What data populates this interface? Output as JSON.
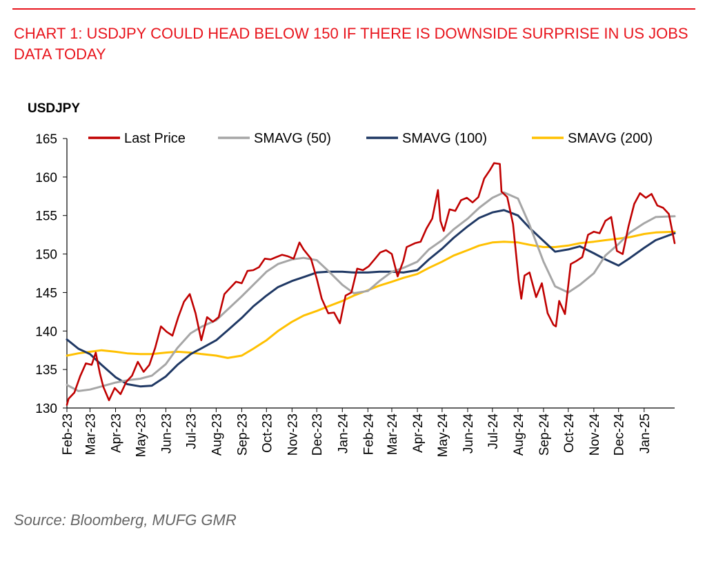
{
  "header": {
    "title": "CHART 1: USDJPY COULD HEAD BELOW 150 IF THERE IS DOWNSIDE SURPRISE IN US JOBS DATA TODAY"
  },
  "source": "Source: Bloomberg, MUFG GMR",
  "chart_data": {
    "type": "line",
    "ylabel": "USDJPY",
    "ylim": [
      130,
      165
    ],
    "yticks": [
      130,
      135,
      140,
      145,
      150,
      155,
      160,
      165
    ],
    "xlim": [
      "2023-02-01",
      "2025-02-07"
    ],
    "xticks": [
      "2023-02-01",
      "2023-03-01",
      "2023-04-01",
      "2023-05-01",
      "2023-06-01",
      "2023-07-01",
      "2023-08-01",
      "2023-09-01",
      "2023-10-01",
      "2023-11-01",
      "2023-12-01",
      "2024-01-01",
      "2024-02-01",
      "2024-03-01",
      "2024-04-01",
      "2024-05-01",
      "2024-06-01",
      "2024-07-01",
      "2024-08-01",
      "2024-09-01",
      "2024-10-01",
      "2024-11-01",
      "2024-12-01",
      "2025-01-01"
    ],
    "xtick_labels": [
      "Feb-23",
      "Mar-23",
      "Apr-23",
      "May-23",
      "Jun-23",
      "Jul-23",
      "Aug-23",
      "Sep-23",
      "Oct-23",
      "Nov-23",
      "Dec-23",
      "Jan-24",
      "Feb-24",
      "Mar-24",
      "Apr-24",
      "May-24",
      "Jun-24",
      "Jul-24",
      "Aug-24",
      "Sep-24",
      "Oct-24",
      "Nov-24",
      "Dec-24",
      "Jan-25"
    ],
    "grid": false,
    "legend_position": "top",
    "series": [
      {
        "name": "Last Price",
        "color": "#c00000",
        "x": [
          "2023-02-01",
          "2023-02-03",
          "2023-02-10",
          "2023-02-17",
          "2023-02-24",
          "2023-03-03",
          "2023-03-08",
          "2023-03-13",
          "2023-03-17",
          "2023-03-24",
          "2023-03-31",
          "2023-04-07",
          "2023-04-14",
          "2023-04-21",
          "2023-04-28",
          "2023-05-05",
          "2023-05-12",
          "2023-05-19",
          "2023-05-26",
          "2023-06-02",
          "2023-06-09",
          "2023-06-16",
          "2023-06-23",
          "2023-06-30",
          "2023-07-07",
          "2023-07-14",
          "2023-07-21",
          "2023-07-28",
          "2023-08-04",
          "2023-08-11",
          "2023-08-18",
          "2023-08-25",
          "2023-09-01",
          "2023-09-08",
          "2023-09-15",
          "2023-09-22",
          "2023-09-29",
          "2023-10-06",
          "2023-10-13",
          "2023-10-20",
          "2023-10-27",
          "2023-11-03",
          "2023-11-10",
          "2023-11-15",
          "2023-11-24",
          "2023-12-01",
          "2023-12-07",
          "2023-12-15",
          "2023-12-22",
          "2023-12-29",
          "2024-01-05",
          "2024-01-12",
          "2024-01-19",
          "2024-01-26",
          "2024-02-02",
          "2024-02-09",
          "2024-02-16",
          "2024-02-23",
          "2024-03-01",
          "2024-03-08",
          "2024-03-15",
          "2024-03-19",
          "2024-03-29",
          "2024-04-05",
          "2024-04-12",
          "2024-04-19",
          "2024-04-26",
          "2024-04-29",
          "2024-05-03",
          "2024-05-10",
          "2024-05-17",
          "2024-05-24",
          "2024-05-31",
          "2024-06-07",
          "2024-06-14",
          "2024-06-21",
          "2024-06-28",
          "2024-07-03",
          "2024-07-10",
          "2024-07-12",
          "2024-07-19",
          "2024-07-26",
          "2024-08-02",
          "2024-08-05",
          "2024-08-09",
          "2024-08-15",
          "2024-08-23",
          "2024-08-30",
          "2024-09-06",
          "2024-09-13",
          "2024-09-16",
          "2024-09-20",
          "2024-09-27",
          "2024-10-04",
          "2024-10-11",
          "2024-10-18",
          "2024-10-25",
          "2024-11-01",
          "2024-11-08",
          "2024-11-15",
          "2024-11-22",
          "2024-11-29",
          "2024-12-06",
          "2024-12-13",
          "2024-12-20",
          "2024-12-27",
          "2025-01-03",
          "2025-01-10",
          "2025-01-17",
          "2025-01-24",
          "2025-01-31",
          "2025-02-07"
        ],
        "values": [
          130.4,
          131.2,
          132.0,
          134.1,
          135.8,
          135.6,
          137.2,
          134.5,
          132.8,
          131.0,
          132.6,
          131.8,
          133.4,
          134.2,
          136.0,
          134.7,
          135.6,
          137.8,
          140.6,
          139.9,
          139.4,
          141.8,
          143.8,
          144.8,
          142.3,
          138.8,
          141.8,
          141.2,
          141.8,
          144.8,
          145.6,
          146.4,
          146.2,
          147.8,
          147.9,
          148.3,
          149.4,
          149.3,
          149.6,
          149.9,
          149.7,
          149.4,
          151.5,
          150.6,
          149.4,
          146.8,
          144.2,
          142.3,
          142.4,
          141.0,
          144.6,
          145.0,
          148.1,
          147.9,
          148.4,
          149.3,
          150.2,
          150.5,
          150.0,
          147.1,
          149.1,
          150.9,
          151.4,
          151.6,
          153.3,
          154.6,
          158.3,
          154.3,
          153.0,
          155.8,
          155.6,
          157.0,
          157.3,
          156.7,
          157.4,
          159.8,
          160.9,
          161.8,
          161.7,
          158.1,
          157.4,
          153.9,
          146.5,
          144.2,
          147.2,
          147.6,
          144.4,
          146.2,
          142.3,
          140.8,
          140.6,
          143.9,
          142.2,
          148.7,
          149.1,
          149.6,
          152.5,
          152.9,
          152.7,
          154.3,
          154.8,
          150.4,
          150.0,
          153.6,
          156.5,
          157.9,
          157.3,
          157.8,
          156.3,
          156.0,
          155.2,
          151.4
        ]
      },
      {
        "name": "SMAVG (50)",
        "color": "#a6a6a6",
        "x": [
          "2023-02-01",
          "2023-02-15",
          "2023-03-01",
          "2023-03-15",
          "2023-04-01",
          "2023-04-15",
          "2023-05-01",
          "2023-05-15",
          "2023-06-01",
          "2023-06-15",
          "2023-07-01",
          "2023-07-15",
          "2023-08-01",
          "2023-08-15",
          "2023-09-01",
          "2023-09-15",
          "2023-10-01",
          "2023-10-15",
          "2023-11-01",
          "2023-11-15",
          "2023-12-01",
          "2023-12-15",
          "2024-01-01",
          "2024-01-15",
          "2024-02-01",
          "2024-02-15",
          "2024-03-01",
          "2024-03-15",
          "2024-04-01",
          "2024-04-15",
          "2024-05-01",
          "2024-05-15",
          "2024-06-01",
          "2024-06-15",
          "2024-07-01",
          "2024-07-15",
          "2024-08-01",
          "2024-08-15",
          "2024-09-01",
          "2024-09-15",
          "2024-10-01",
          "2024-10-15",
          "2024-11-01",
          "2024-11-15",
          "2024-12-01",
          "2024-12-15",
          "2025-01-01",
          "2025-01-15",
          "2025-02-07"
        ],
        "values": [
          133.0,
          132.2,
          132.4,
          132.8,
          133.3,
          133.6,
          133.8,
          134.2,
          135.7,
          137.8,
          139.7,
          140.6,
          141.4,
          142.8,
          144.5,
          146.0,
          147.7,
          148.7,
          149.3,
          149.5,
          149.2,
          147.8,
          146.0,
          144.9,
          145.2,
          146.5,
          147.7,
          148.2,
          149.0,
          150.6,
          151.8,
          153.2,
          154.6,
          156.0,
          157.3,
          158.0,
          157.2,
          153.8,
          149.0,
          145.8,
          145.0,
          146.0,
          147.5,
          149.8,
          151.3,
          152.8,
          154.0,
          154.8,
          154.9
        ]
      },
      {
        "name": "SMAVG (100)",
        "color": "#1f3864",
        "x": [
          "2023-02-01",
          "2023-02-15",
          "2023-03-01",
          "2023-03-15",
          "2023-04-01",
          "2023-04-15",
          "2023-05-01",
          "2023-05-15",
          "2023-06-01",
          "2023-06-15",
          "2023-07-01",
          "2023-07-15",
          "2023-08-01",
          "2023-08-15",
          "2023-09-01",
          "2023-09-15",
          "2023-10-01",
          "2023-10-15",
          "2023-11-01",
          "2023-11-15",
          "2023-12-01",
          "2023-12-15",
          "2024-01-01",
          "2024-01-15",
          "2024-02-01",
          "2024-02-15",
          "2024-03-01",
          "2024-03-15",
          "2024-04-01",
          "2024-04-15",
          "2024-05-01",
          "2024-05-15",
          "2024-06-01",
          "2024-06-15",
          "2024-07-01",
          "2024-07-15",
          "2024-08-01",
          "2024-08-15",
          "2024-09-01",
          "2024-09-15",
          "2024-10-01",
          "2024-10-15",
          "2024-11-01",
          "2024-11-15",
          "2024-12-01",
          "2024-12-15",
          "2025-01-01",
          "2025-01-15",
          "2025-02-07"
        ],
        "values": [
          138.9,
          137.7,
          137.0,
          135.6,
          134.0,
          133.1,
          132.8,
          132.9,
          134.1,
          135.6,
          137.0,
          137.8,
          138.8,
          140.1,
          141.7,
          143.2,
          144.6,
          145.7,
          146.5,
          147.0,
          147.6,
          147.7,
          147.7,
          147.6,
          147.6,
          147.7,
          147.7,
          147.6,
          147.9,
          149.3,
          150.7,
          152.1,
          153.6,
          154.7,
          155.4,
          155.7,
          155.0,
          153.4,
          151.7,
          150.3,
          150.6,
          151.0,
          150.1,
          149.3,
          148.5,
          149.5,
          150.8,
          151.8,
          152.7
        ]
      },
      {
        "name": "SMAVG (200)",
        "color": "#ffc000",
        "x": [
          "2023-02-01",
          "2023-02-15",
          "2023-03-01",
          "2023-03-15",
          "2023-04-01",
          "2023-04-15",
          "2023-05-01",
          "2023-05-15",
          "2023-06-01",
          "2023-06-15",
          "2023-07-01",
          "2023-07-15",
          "2023-08-01",
          "2023-08-15",
          "2023-09-01",
          "2023-09-15",
          "2023-10-01",
          "2023-10-15",
          "2023-11-01",
          "2023-11-15",
          "2023-12-01",
          "2023-12-15",
          "2024-01-01",
          "2024-01-15",
          "2024-02-01",
          "2024-02-15",
          "2024-03-01",
          "2024-03-15",
          "2024-04-01",
          "2024-04-15",
          "2024-05-01",
          "2024-05-15",
          "2024-06-01",
          "2024-06-15",
          "2024-07-01",
          "2024-07-15",
          "2024-08-01",
          "2024-08-15",
          "2024-09-01",
          "2024-09-15",
          "2024-10-01",
          "2024-10-15",
          "2024-11-01",
          "2024-11-15",
          "2024-12-01",
          "2024-12-15",
          "2025-01-01",
          "2025-01-15",
          "2025-02-07"
        ],
        "values": [
          136.8,
          137.1,
          137.3,
          137.5,
          137.3,
          137.1,
          137.0,
          137.0,
          137.2,
          137.3,
          137.2,
          137.0,
          136.8,
          136.5,
          136.8,
          137.7,
          138.8,
          140.0,
          141.2,
          142.0,
          142.6,
          143.2,
          143.9,
          144.6,
          145.3,
          145.9,
          146.4,
          146.9,
          147.4,
          148.2,
          149.0,
          149.8,
          150.5,
          151.1,
          151.5,
          151.6,
          151.5,
          151.2,
          150.9,
          150.9,
          151.1,
          151.4,
          151.6,
          151.8,
          152.0,
          152.2,
          152.6,
          152.8,
          152.9
        ]
      }
    ]
  }
}
